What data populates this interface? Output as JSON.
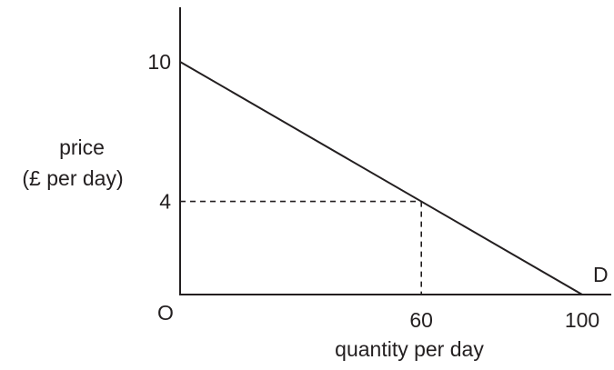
{
  "chart_data": {
    "type": "line",
    "xlabel": "quantity per day",
    "ylabel_line1": "price",
    "ylabel_line2": "(£ per day)",
    "origin_label": "O",
    "series": [
      {
        "name": "D",
        "x": [
          0,
          100
        ],
        "y": [
          10,
          0
        ]
      }
    ],
    "x_ticks": [
      60,
      100
    ],
    "y_ticks": [
      4,
      10
    ],
    "xlim": [
      0,
      100
    ],
    "ylim": [
      0,
      10
    ],
    "reference_point": {
      "x": 60,
      "y": 4,
      "style": "dashed"
    },
    "grid": false,
    "colors": {
      "ink": "#231f20",
      "background": "#ffffff"
    }
  }
}
